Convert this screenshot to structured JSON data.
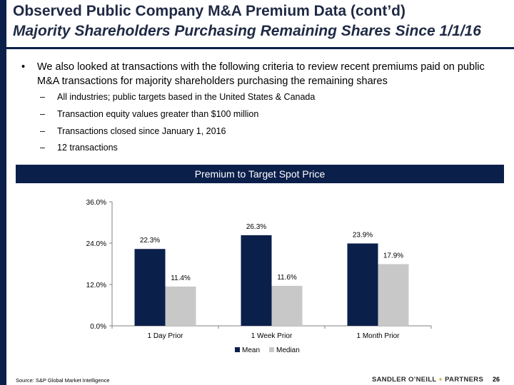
{
  "header": {
    "title_line1": "Observed Public Company M&A Premium Data (cont’d)",
    "title_line2": "Majority Shareholders Purchasing Remaining Shares Since 1/1/16"
  },
  "body": {
    "bullet_symbol": "•",
    "bullet": "We also looked at transactions with the following criteria to review recent premiums paid on public M&A transactions for majority shareholders purchasing the remaining shares",
    "dash_symbol": "–",
    "subbullets": [
      "All industries; public targets based in the United States & Canada",
      "Transaction equity values greater than $100 million",
      "Transactions closed since January 1, 2016",
      "12 transactions"
    ]
  },
  "chart_data": {
    "type": "bar",
    "title": "Premium to Target Spot Price",
    "categories": [
      "1 Day Prior",
      "1 Week Prior",
      "1 Month Prior"
    ],
    "series": [
      {
        "name": "Mean",
        "values": [
          22.3,
          26.3,
          23.9
        ],
        "labels": [
          "22.3%",
          "26.3%",
          "23.9%"
        ],
        "color": "#0b1f4b"
      },
      {
        "name": "Median",
        "values": [
          11.4,
          11.6,
          17.9
        ],
        "labels": [
          "11.4%",
          "11.6%",
          "17.9%"
        ],
        "color": "#c8c8c8"
      }
    ],
    "ylim": [
      0,
      36
    ],
    "yticks": [
      0,
      12,
      24,
      36
    ],
    "ytick_labels": [
      "0.0%",
      "12.0%",
      "24.0%",
      "36.0%"
    ],
    "grid": false,
    "legend": "bottom-center"
  },
  "footer": {
    "source": "Source: S&P Global Market Intelligence",
    "logo_part1": "SANDLER O’NEILL",
    "logo_plus": "+",
    "logo_part2": "PARTNERS",
    "page_number": "26"
  }
}
